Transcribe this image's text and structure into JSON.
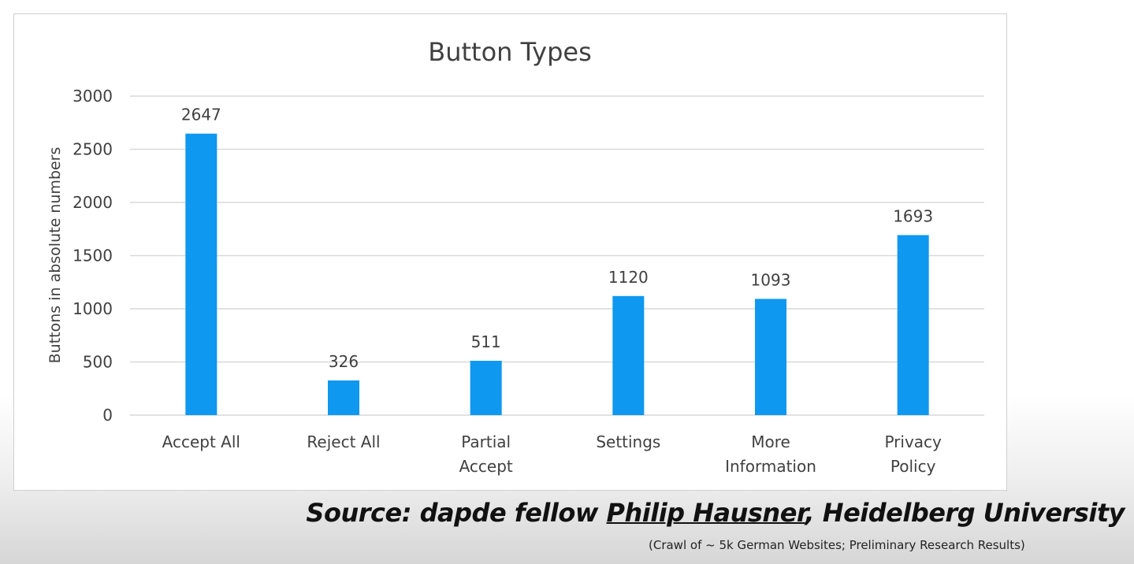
{
  "chart_data": {
    "type": "bar",
    "title": "Button Types",
    "xlabel": "",
    "ylabel": "Buttons in absolute numbers",
    "categories": [
      [
        "Accept All"
      ],
      [
        "Reject All"
      ],
      [
        "Partial",
        "Accept"
      ],
      [
        "Settings"
      ],
      [
        "More",
        "Information"
      ],
      [
        "Privacy",
        "Policy"
      ]
    ],
    "values": [
      2647,
      326,
      511,
      1120,
      1093,
      1693
    ],
    "data_labels": [
      "2647",
      "326",
      "511",
      "1120",
      "1093",
      "1693"
    ],
    "ylim": [
      0,
      3000
    ],
    "yticks": [
      0,
      500,
      1000,
      1500,
      2000,
      2500,
      3000
    ],
    "grid": true,
    "legend": "none",
    "bar_color": "#0f98ef",
    "grid_color": "#d9d9d9"
  },
  "footer": {
    "source_prefix": "Source: dapde fellow ",
    "source_name": "Philip Hausner",
    "source_suffix": ", Heidelberg University",
    "note": "(Crawl of ~ 5k German Websites; Preliminary Research Results)"
  }
}
